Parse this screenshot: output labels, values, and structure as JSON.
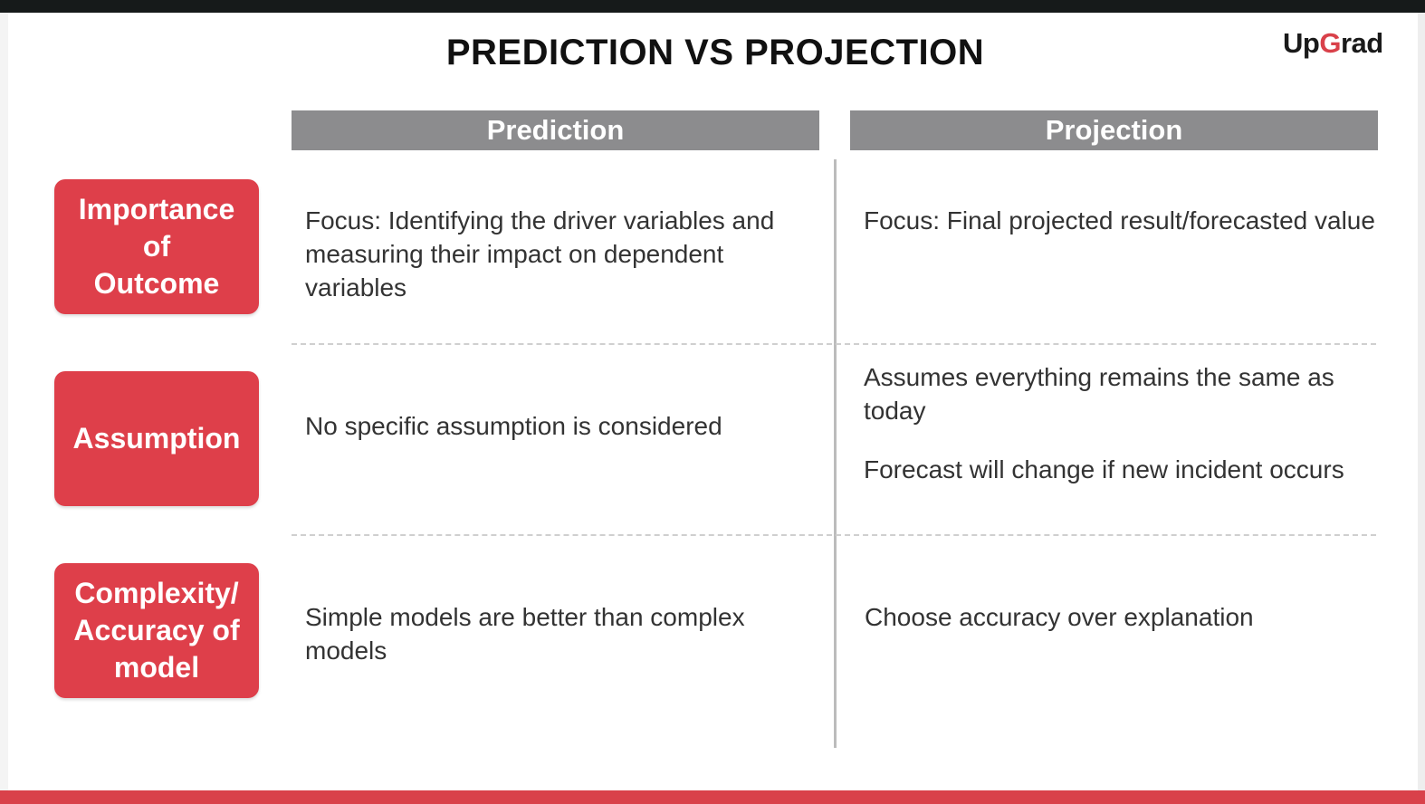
{
  "slide": {
    "title": "PREDICTION VS PROJECTION",
    "logo": {
      "prefix": "Up",
      "accent_letter": "G",
      "suffix": "rad",
      "accent_color": "#d9414a"
    }
  },
  "columns": [
    "Prediction",
    "Projection"
  ],
  "rows": [
    {
      "label_lines": [
        "Importance",
        "of",
        "Outcome"
      ],
      "prediction": [
        "Focus: Identifying the driver variables and measuring their impact on dependent variables"
      ],
      "projection": [
        "Focus: Final projected result/forecasted value"
      ]
    },
    {
      "label_lines": [
        "Assumption"
      ],
      "prediction": [
        "No specific assumption is considered"
      ],
      "projection": [
        "Assumes everything remains the same as today",
        "Forecast will change if new incident occurs"
      ]
    },
    {
      "label_lines": [
        "Complexity/",
        "Accuracy of",
        "model"
      ],
      "prediction": [
        "Simple models are better than complex models"
      ],
      "projection": [
        "Choose accuracy over explanation"
      ]
    }
  ],
  "colors": {
    "label_bg": "#de3f4a",
    "header_bg": "#8c8c8e",
    "bottom_bar": "#d9414a"
  }
}
